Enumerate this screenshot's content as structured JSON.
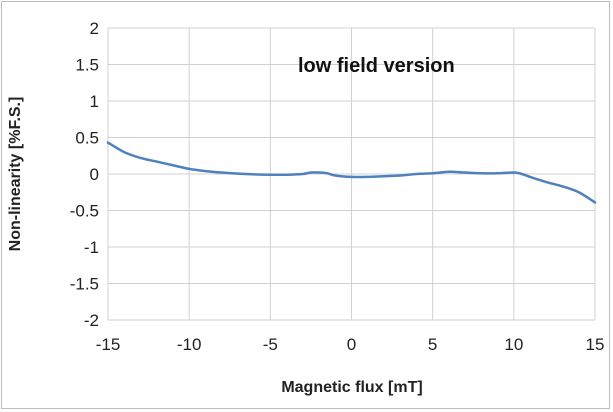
{
  "chart_data": {
    "type": "line",
    "xlabel": "Magnetic flux [mT]",
    "ylabel": "Non-linearity [%F.S.]",
    "annotation": "low field version",
    "xlim": [
      -15,
      15
    ],
    "ylim": [
      -2,
      2
    ],
    "xticks": [
      -15,
      -10,
      -5,
      0,
      5,
      10,
      15
    ],
    "yticks": [
      2,
      1.5,
      1,
      0.5,
      0,
      -0.5,
      -1,
      -1.5,
      -2
    ],
    "xtick_labels": [
      "-15",
      "-10",
      "-5",
      "0",
      "5",
      "10",
      "15"
    ],
    "ytick_labels": [
      "2",
      "1.5",
      "1",
      "0.5",
      "0",
      "-0.5",
      "-1",
      "-1.5",
      "-2"
    ],
    "grid": true,
    "series": [
      {
        "color": "#4f81bd",
        "x": [
          -15,
          -14,
          -13,
          -12,
          -11,
          -10,
          -9,
          -8,
          -7,
          -6,
          -5,
          -4,
          -3,
          -2.5,
          -2,
          -1.5,
          -1,
          0,
          1,
          2,
          3,
          4,
          5,
          6,
          7,
          8,
          9,
          10,
          10.5,
          11,
          12,
          13,
          14,
          15
        ],
        "y": [
          0.43,
          0.3,
          0.22,
          0.17,
          0.12,
          0.07,
          0.04,
          0.02,
          0.005,
          -0.005,
          -0.01,
          -0.01,
          0.0,
          0.02,
          0.02,
          0.01,
          -0.02,
          -0.04,
          -0.04,
          -0.03,
          -0.02,
          0.0,
          0.01,
          0.03,
          0.02,
          0.01,
          0.01,
          0.02,
          0.0,
          -0.04,
          -0.11,
          -0.17,
          -0.25,
          -0.39
        ]
      }
    ]
  }
}
